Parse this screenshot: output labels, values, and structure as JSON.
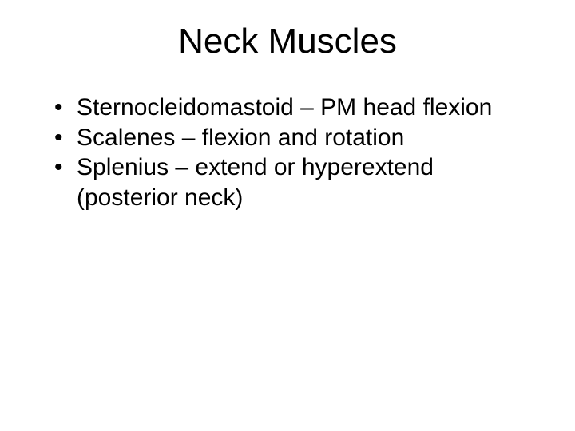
{
  "slide": {
    "background_color": "#ffffff",
    "text_color": "#000000",
    "font_family": "Comic Sans MS",
    "title": {
      "text": "Neck Muscles",
      "fontsize": 44,
      "align": "center"
    },
    "bullets": {
      "fontsize": 30,
      "marker": "•",
      "items": [
        "Sternocleidomastoid – PM head flexion",
        "Scalenes – flexion and rotation",
        "Splenius – extend or hyperextend (posterior neck)"
      ]
    }
  }
}
